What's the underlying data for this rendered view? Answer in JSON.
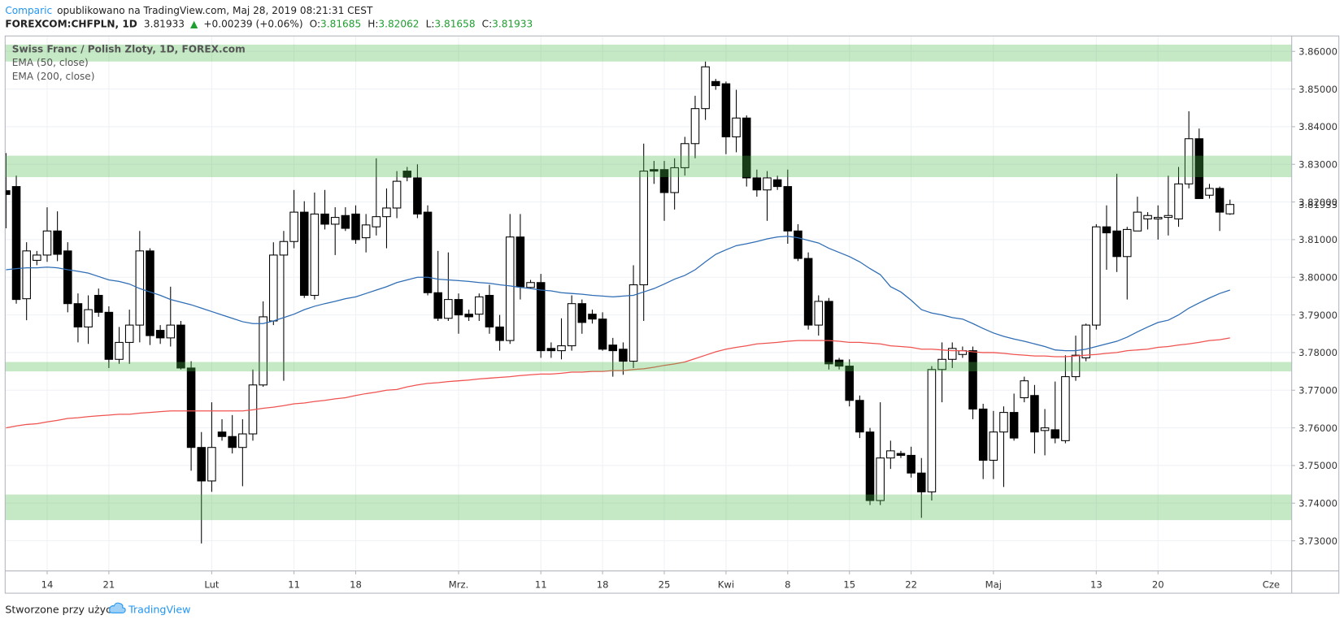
{
  "header": {
    "author": "Comparic",
    "published": "opublikowano na TradingView.com, Maj 28, 2019 08:21:31 CEST",
    "symbol": "FOREXCOM:CHFPLN, 1D",
    "last": "3.81933",
    "arrow": "▲",
    "change": "+0.00239 (+0.06%)",
    "open_label": "O:",
    "open": "3.81685",
    "high_label": "H:",
    "high": "3.82062",
    "low_label": "L:",
    "low": "3.81658",
    "close_label": "C:",
    "close": "3.81933"
  },
  "footer": {
    "text": "Stworzone przy użyciu",
    "brand": "TradingView"
  },
  "chart_data": {
    "type": "candlestick",
    "categories": [
      null,
      null,
      null,
      null,
      "14",
      null,
      null,
      null,
      null,
      null,
      "21",
      null,
      null,
      null,
      null,
      null,
      null,
      null,
      null,
      null,
      "Lut",
      null,
      null,
      null,
      null,
      null,
      null,
      null,
      "11",
      null,
      null,
      null,
      null,
      null,
      "18",
      null,
      null,
      null,
      null,
      null,
      null,
      null,
      null,
      null,
      "Mrz.",
      null,
      null,
      null,
      null,
      null,
      null,
      null,
      "11",
      null,
      null,
      null,
      null,
      null,
      "18",
      null,
      null,
      null,
      null,
      null,
      "25",
      null,
      null,
      null,
      null,
      null,
      "Kwi",
      null,
      null,
      null,
      null,
      null,
      "8",
      null,
      null,
      null,
      null,
      null,
      "15",
      null,
      null,
      null,
      null,
      null,
      "22",
      null,
      null,
      null,
      null,
      null,
      null,
      null,
      "Maj",
      null,
      null,
      null,
      null,
      null,
      null,
      null,
      null,
      null,
      "13",
      null,
      null,
      null,
      null,
      null,
      "20",
      null,
      null,
      null,
      null,
      null,
      null,
      null,
      null,
      null,
      null,
      "Cze"
    ],
    "series": [
      {
        "name": "Swiss Franc / Polish Zloty, 1D, FOREX.com",
        "up_color": "#ffffff",
        "down_color": "#000000",
        "border_color": "#000000",
        "open": [
          3.823,
          3.8241,
          3.7943,
          3.8045,
          3.8059,
          3.8123,
          3.807,
          3.793,
          3.7868,
          3.7952,
          3.7907,
          3.7782,
          3.7827,
          3.7873,
          3.807,
          3.7859,
          3.7839,
          3.7873,
          3.7759,
          3.7548,
          3.7459,
          3.7589,
          3.7577,
          3.7548,
          3.7584,
          3.7714,
          3.7884,
          3.8059,
          3.8095,
          3.8173,
          3.7952,
          3.8168,
          3.8141,
          3.8164,
          3.8168,
          3.8105,
          3.8134,
          3.8161,
          3.8184,
          3.8282,
          3.8264,
          3.8173,
          3.7959,
          3.7891,
          3.7941,
          3.7902,
          3.7902,
          3.7952,
          3.7868,
          3.7832,
          3.8107,
          3.7973,
          3.7986,
          3.7811,
          3.7805,
          3.7818,
          3.793,
          3.7902,
          3.7889,
          3.782,
          3.7809,
          3.7777,
          3.798,
          3.8286,
          3.8286,
          3.8225,
          3.8291,
          3.8355,
          3.8448,
          3.852,
          3.8514,
          3.8373,
          3.8423,
          3.8264,
          3.8232,
          3.8259,
          3.8241,
          3.8123,
          3.805,
          3.7873,
          3.7936,
          3.778,
          3.7764,
          3.7673,
          3.7589,
          3.7407,
          3.752,
          3.7532,
          3.7527,
          3.748,
          3.743,
          3.7755,
          3.7782,
          3.7795,
          3.7805,
          3.765,
          3.7514,
          3.7589,
          3.7641,
          3.768,
          3.7686,
          3.7593,
          3.7595,
          3.7566,
          3.7736,
          3.7786,
          3.7873,
          3.8134,
          3.8123,
          3.8055,
          3.8123,
          3.8155,
          3.8155,
          3.8159,
          3.8155,
          3.8248,
          3.8368,
          3.8218,
          3.8236,
          3.81685,
          null,
          null,
          null,
          null
        ],
        "high": [
          3.833,
          3.827,
          3.8093,
          3.807,
          3.8186,
          3.8175,
          3.8093,
          3.7957,
          3.7952,
          3.797,
          3.7923,
          3.7868,
          3.7914,
          3.8123,
          3.8077,
          3.7873,
          3.7975,
          3.7884,
          3.7777,
          3.7589,
          3.7668,
          3.7623,
          3.7634,
          3.7623,
          3.7755,
          3.7936,
          3.8093,
          3.8123,
          3.8232,
          3.8202,
          3.8225,
          3.8232,
          3.8186,
          3.8186,
          3.8191,
          3.8168,
          3.8316,
          3.8236,
          3.8282,
          3.8293,
          3.83,
          3.8191,
          3.807,
          3.8066,
          3.7957,
          3.7914,
          3.7957,
          3.798,
          3.79,
          3.8168,
          3.8168,
          3.7993,
          3.8009,
          3.7827,
          3.7891,
          3.7952,
          3.7941,
          3.7914,
          3.7907,
          3.7839,
          3.7827,
          3.8032,
          3.8355,
          3.8309,
          3.8309,
          3.8316,
          3.8373,
          3.8482,
          3.8573,
          3.8527,
          3.852,
          3.8498,
          3.843,
          3.8286,
          3.8282,
          3.827,
          3.8286,
          3.8141,
          3.8066,
          3.7952,
          3.7945,
          3.7786,
          3.7782,
          3.7686,
          3.76,
          3.7668,
          3.7566,
          3.7539,
          3.755,
          3.752,
          3.7764,
          3.7827,
          3.7827,
          3.7816,
          3.7816,
          3.7664,
          3.7645,
          3.7657,
          3.7691,
          3.7736,
          3.7714,
          3.765,
          3.7723,
          3.7793,
          3.7845,
          3.7877,
          3.8141,
          3.8191,
          3.8275,
          3.8134,
          3.8214,
          3.8173,
          3.8191,
          3.827,
          3.8293,
          3.8441,
          3.8395,
          3.8248,
          3.8241,
          3.82062,
          null,
          null,
          null,
          null
        ],
        "low": [
          3.813,
          3.793,
          3.7886,
          3.8032,
          3.8041,
          3.8043,
          3.7907,
          3.7827,
          3.7823,
          3.7895,
          3.7759,
          3.777,
          3.777,
          3.7827,
          3.782,
          3.7823,
          3.7816,
          3.7755,
          3.7486,
          3.7293,
          3.743,
          3.7566,
          3.7532,
          3.7445,
          3.7566,
          3.7709,
          3.7873,
          3.7725,
          3.8077,
          3.7945,
          3.7941,
          3.8127,
          3.8059,
          3.8123,
          3.8089,
          3.8066,
          3.8111,
          3.8077,
          3.8157,
          3.8255,
          3.8157,
          3.7952,
          3.7884,
          3.7884,
          3.785,
          3.7884,
          3.7884,
          3.785,
          3.7805,
          3.7823,
          3.7941,
          3.797,
          3.7786,
          3.7786,
          3.7782,
          3.7805,
          3.785,
          3.7877,
          3.7805,
          3.7736,
          3.7741,
          3.7759,
          3.7884,
          3.8248,
          3.815,
          3.818,
          3.827,
          3.8316,
          3.8418,
          3.8498,
          3.8327,
          3.8332,
          3.8241,
          3.8214,
          3.815,
          3.8232,
          3.8089,
          3.8043,
          3.7861,
          3.7845,
          3.7755,
          3.7755,
          3.7657,
          3.7573,
          3.7395,
          3.7395,
          3.7491,
          3.752,
          3.7468,
          3.7361,
          3.7407,
          3.7668,
          3.7759,
          3.7786,
          3.7623,
          3.7464,
          3.7464,
          3.7443,
          3.7566,
          3.7668,
          3.7532,
          3.7527,
          3.7559,
          3.7559,
          3.7725,
          3.7777,
          3.7861,
          3.802,
          3.8014,
          3.7941,
          3.8123,
          3.8127,
          3.81,
          3.8111,
          3.8134,
          3.8236,
          3.8209,
          3.8209,
          3.8123,
          3.81658,
          null,
          null,
          null,
          null
        ],
        "close": [
          3.822,
          3.7941,
          3.807,
          3.8059,
          3.8123,
          3.8061,
          3.793,
          3.7868,
          3.7914,
          3.7907,
          3.7782,
          3.7827,
          3.7873,
          3.807,
          3.7845,
          3.7839,
          3.7873,
          3.7759,
          3.7548,
          3.7459,
          3.7548,
          3.7577,
          3.7548,
          3.7584,
          3.7714,
          3.7895,
          3.8059,
          3.8095,
          3.8173,
          3.7952,
          3.8168,
          3.8141,
          3.8159,
          3.813,
          3.81,
          3.8139,
          3.8161,
          3.8184,
          3.8255,
          3.8266,
          3.8168,
          3.7959,
          3.7891,
          3.7941,
          3.79,
          3.7895,
          3.7948,
          3.7868,
          3.7832,
          3.8107,
          3.7975,
          3.7986,
          3.7805,
          3.7805,
          3.7818,
          3.793,
          3.788,
          3.7889,
          3.7809,
          3.7805,
          3.7777,
          3.798,
          3.8282,
          3.8282,
          3.8225,
          3.8291,
          3.8355,
          3.8448,
          3.8559,
          3.8509,
          3.8373,
          3.8423,
          3.8264,
          3.8232,
          3.8264,
          3.8241,
          3.8123,
          3.805,
          3.7873,
          3.7936,
          3.777,
          3.7764,
          3.7673,
          3.7589,
          3.7407,
          3.752,
          3.7539,
          3.7527,
          3.748,
          3.743,
          3.7755,
          3.7782,
          3.7811,
          3.7805,
          3.765,
          3.7514,
          3.7589,
          3.7641,
          3.7573,
          3.7725,
          3.7589,
          3.76,
          3.7573,
          3.7736,
          3.7793,
          3.7873,
          3.8134,
          3.8118,
          3.8055,
          3.8127,
          3.8173,
          3.8164,
          3.8159,
          3.8164,
          3.8248,
          3.8368,
          3.8209,
          3.8236,
          3.8173,
          3.81933,
          null,
          null,
          null,
          null
        ]
      }
    ],
    "overlays": [
      {
        "name": "EMA (50, close)",
        "color": "#2f6db5",
        "values": [
          3.802,
          3.8023,
          3.8025,
          3.8025,
          3.8027,
          3.8025,
          3.802,
          3.8016,
          3.8011,
          3.8002,
          3.7993,
          3.7989,
          3.7982,
          3.797,
          3.7961,
          3.7952,
          3.7941,
          3.7934,
          3.7927,
          3.7918,
          3.7909,
          3.79,
          3.7891,
          3.7882,
          3.7877,
          3.7877,
          3.7884,
          3.7893,
          3.7902,
          3.7914,
          3.7923,
          3.793,
          3.7936,
          3.7943,
          3.7948,
          3.7957,
          3.7966,
          3.7975,
          3.7986,
          3.7993,
          3.8,
          3.8,
          3.7995,
          3.7993,
          3.7991,
          3.7989,
          3.7986,
          3.7984,
          3.798,
          3.7977,
          3.7973,
          3.797,
          3.7966,
          3.7964,
          3.7959,
          3.7957,
          3.7955,
          3.7952,
          3.795,
          3.7948,
          3.795,
          3.7952,
          3.7961,
          3.797,
          3.7982,
          3.7995,
          3.8005,
          3.802,
          3.8041,
          3.8061,
          3.8073,
          3.8084,
          3.8089,
          3.8095,
          3.8102,
          3.8107,
          3.8109,
          3.8105,
          3.8098,
          3.8091,
          3.8077,
          3.8066,
          3.8055,
          3.8041,
          3.8023,
          3.8007,
          3.7975,
          3.7961,
          3.7939,
          3.7914,
          3.7905,
          3.79,
          3.7893,
          3.7889,
          3.7877,
          3.7864,
          3.7852,
          3.7843,
          3.7836,
          3.783,
          3.7823,
          3.7816,
          3.7807,
          3.7805,
          3.7805,
          3.7809,
          3.7816,
          3.7823,
          3.783,
          3.7841,
          3.7855,
          3.7868,
          3.788,
          3.7886,
          3.79,
          3.7918,
          3.7932,
          3.7945,
          3.7957,
          3.7966,
          null,
          null,
          null,
          null
        ]
      },
      {
        "name": "EMA (200, close)",
        "color": "#ef5350",
        "values": [
          3.76,
          3.7605,
          3.7609,
          3.7611,
          3.7616,
          3.762,
          3.7625,
          3.7627,
          3.763,
          3.7632,
          3.7634,
          3.7636,
          3.7636,
          3.7639,
          3.7641,
          3.7643,
          3.7645,
          3.7645,
          3.7645,
          3.7645,
          3.7645,
          3.7645,
          3.7645,
          3.7645,
          3.7648,
          3.7652,
          3.7655,
          3.7659,
          3.7664,
          3.7666,
          3.767,
          3.7673,
          3.7677,
          3.768,
          3.7686,
          3.7691,
          3.7695,
          3.77,
          3.7702,
          3.7709,
          3.7714,
          3.7718,
          3.772,
          3.7723,
          3.7725,
          3.7727,
          3.773,
          3.7732,
          3.7734,
          3.7736,
          3.7739,
          3.7741,
          3.7743,
          3.7743,
          3.7745,
          3.7748,
          3.7748,
          3.775,
          3.775,
          3.7752,
          3.7752,
          3.7755,
          3.7757,
          3.7761,
          3.7766,
          3.777,
          3.7775,
          3.7784,
          3.7793,
          3.7802,
          3.7809,
          3.7814,
          3.7818,
          3.7823,
          3.7825,
          3.7827,
          3.783,
          3.7832,
          3.7832,
          3.7832,
          3.7832,
          3.783,
          3.7827,
          3.7827,
          3.7825,
          3.7823,
          3.7818,
          3.7816,
          3.7814,
          3.7809,
          3.7809,
          3.7807,
          3.7805,
          3.7805,
          3.7802,
          3.78,
          3.78,
          3.7798,
          3.7795,
          3.7793,
          3.7791,
          3.7791,
          3.7789,
          3.7789,
          3.7791,
          3.7793,
          3.7795,
          3.7798,
          3.78,
          3.7805,
          3.7807,
          3.7809,
          3.7814,
          3.7816,
          3.782,
          3.7823,
          3.7827,
          3.7832,
          3.7834,
          3.7839,
          null,
          null,
          null,
          null
        ]
      }
    ],
    "zones": [
      [
        3.8573,
        3.8618
      ],
      [
        3.8266,
        3.8323
      ],
      [
        3.775,
        3.7775
      ],
      [
        3.7355,
        3.7423
      ]
    ],
    "zone_color": "rgba(76,187,76,0.32)",
    "ylim": [
      3.722,
      3.8641
    ],
    "yticks": [
      {
        "value": 3.73,
        "label": "3.73000"
      },
      {
        "value": 3.74,
        "label": "3.74000"
      },
      {
        "value": 3.75,
        "label": "3.75000"
      },
      {
        "value": 3.76,
        "label": "3.76000"
      },
      {
        "value": 3.77,
        "label": "3.77000"
      },
      {
        "value": 3.78,
        "label": "3.78000"
      },
      {
        "value": 3.79,
        "label": "3.79000"
      },
      {
        "value": 3.8,
        "label": "3.80000"
      },
      {
        "value": 3.81,
        "label": "3.81000"
      },
      {
        "value": 3.82,
        "label": "3.82000"
      },
      {
        "value": 3.83,
        "label": "3.83000"
      },
      {
        "value": 3.84,
        "label": "3.84000"
      },
      {
        "value": 3.85,
        "label": "3.85000"
      },
      {
        "value": 3.86,
        "label": "3.86000"
      }
    ],
    "grid": true
  }
}
